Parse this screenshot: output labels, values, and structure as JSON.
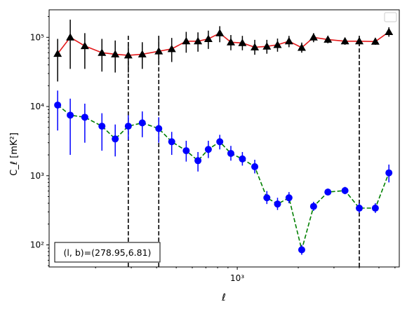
{
  "chart_data": {
    "type": "scatter",
    "xscale": "log",
    "yscale": "log",
    "xlim": [
      118,
      6300
    ],
    "ylim": [
      48,
      250000
    ],
    "xlabel": "ℓ",
    "ylabel": "C_ℓ [mK²]",
    "x_major_ticks": [
      {
        "value": 1000,
        "label": "10³"
      }
    ],
    "y_major_ticks": [
      {
        "value": 100,
        "label": "10²"
      },
      {
        "value": 1000,
        "label": "10³"
      },
      {
        "value": 10000,
        "label": "10⁴"
      },
      {
        "value": 100000,
        "label": "10⁵"
      }
    ],
    "legend": {
      "placement": "top-right",
      "entries": []
    },
    "annotation": "(l, b)=(278.95,6.81)",
    "vlines": [
      {
        "x": 290,
        "ymin": 48,
        "ymax": 110000,
        "style": "dashed",
        "color": "#000000"
      },
      {
        "x": 410,
        "ymin": 48,
        "ymax": 110000,
        "style": "dashed",
        "color": "#000000"
      },
      {
        "x": 4000,
        "ymin": 48,
        "ymax": 110000,
        "style": "dashed",
        "color": "#000000"
      }
    ],
    "series": [
      {
        "marker": "triangle",
        "marker_color": "#000000",
        "line_color": "#e41a1c",
        "line_style": "solid",
        "errorbar_color": "#000000",
        "points": [
          {
            "x": 130,
            "y": 58000,
            "lo": 23000,
            "hi": 95000
          },
          {
            "x": 150,
            "y": 100000,
            "lo": 35000,
            "hi": 180000
          },
          {
            "x": 177,
            "y": 75000,
            "lo": 35000,
            "hi": 115000
          },
          {
            "x": 215,
            "y": 60000,
            "lo": 32000,
            "hi": 95000
          },
          {
            "x": 250,
            "y": 57000,
            "lo": 31000,
            "hi": 90000
          },
          {
            "x": 290,
            "y": 55000,
            "lo": 31000,
            "hi": 85000
          },
          {
            "x": 340,
            "y": 57000,
            "lo": 35000,
            "hi": 85000
          },
          {
            "x": 410,
            "y": 63000,
            "lo": 40000,
            "hi": 95000
          },
          {
            "x": 475,
            "y": 68000,
            "lo": 44000,
            "hi": 98000
          },
          {
            "x": 560,
            "y": 88000,
            "lo": 60000,
            "hi": 120000
          },
          {
            "x": 640,
            "y": 88000,
            "lo": 62000,
            "hi": 118000
          },
          {
            "x": 720,
            "y": 95000,
            "lo": 68000,
            "hi": 125000
          },
          {
            "x": 820,
            "y": 115000,
            "lo": 85000,
            "hi": 145000
          },
          {
            "x": 930,
            "y": 85000,
            "lo": 65000,
            "hi": 108000
          },
          {
            "x": 1060,
            "y": 83000,
            "lo": 65000,
            "hi": 105000
          },
          {
            "x": 1220,
            "y": 72000,
            "lo": 56000,
            "hi": 92000
          },
          {
            "x": 1400,
            "y": 74000,
            "lo": 58000,
            "hi": 92000
          },
          {
            "x": 1580,
            "y": 78000,
            "lo": 62000,
            "hi": 96000
          },
          {
            "x": 1800,
            "y": 88000,
            "lo": 72000,
            "hi": 105000
          },
          {
            "x": 2080,
            "y": 71000,
            "lo": 60000,
            "hi": 84000
          },
          {
            "x": 2380,
            "y": 100000,
            "lo": 85000,
            "hi": 115000
          },
          {
            "x": 2800,
            "y": 93000,
            "lo": 82000,
            "hi": 105000
          },
          {
            "x": 3400,
            "y": 88000,
            "lo": 78000,
            "hi": 98000
          },
          {
            "x": 4000,
            "y": 88000,
            "lo": 79000,
            "hi": 97000
          },
          {
            "x": 4800,
            "y": 87000,
            "lo": 78000,
            "hi": 97000
          },
          {
            "x": 5600,
            "y": 120000,
            "lo": 102000,
            "hi": 140000
          }
        ]
      },
      {
        "marker": "circle",
        "marker_color": "#0000ff",
        "line_color": "#008000",
        "line_style": "dashed",
        "errorbar_color": "#0000ff",
        "points": [
          {
            "x": 130,
            "y": 10500,
            "lo": 4500,
            "hi": 17000
          },
          {
            "x": 150,
            "y": 7500,
            "lo": 2000,
            "hi": 13000
          },
          {
            "x": 177,
            "y": 7000,
            "lo": 3000,
            "hi": 11000
          },
          {
            "x": 215,
            "y": 5200,
            "lo": 2300,
            "hi": 8000
          },
          {
            "x": 250,
            "y": 3400,
            "lo": 1900,
            "hi": 5500
          },
          {
            "x": 290,
            "y": 5200,
            "lo": 3300,
            "hi": 7500
          },
          {
            "x": 340,
            "y": 5800,
            "lo": 3600,
            "hi": 8500
          },
          {
            "x": 410,
            "y": 4800,
            "lo": 3000,
            "hi": 7000
          },
          {
            "x": 475,
            "y": 3100,
            "lo": 2000,
            "hi": 4300
          },
          {
            "x": 560,
            "y": 2300,
            "lo": 1600,
            "hi": 3200
          },
          {
            "x": 640,
            "y": 1650,
            "lo": 1150,
            "hi": 2200
          },
          {
            "x": 720,
            "y": 2400,
            "lo": 1800,
            "hi": 3200
          },
          {
            "x": 820,
            "y": 3100,
            "lo": 2400,
            "hi": 3900
          },
          {
            "x": 930,
            "y": 2100,
            "lo": 1650,
            "hi": 2700
          },
          {
            "x": 1060,
            "y": 1750,
            "lo": 1400,
            "hi": 2200
          },
          {
            "x": 1220,
            "y": 1350,
            "lo": 1080,
            "hi": 1700
          },
          {
            "x": 1400,
            "y": 480,
            "lo": 390,
            "hi": 600
          },
          {
            "x": 1580,
            "y": 390,
            "lo": 320,
            "hi": 480
          },
          {
            "x": 1800,
            "y": 480,
            "lo": 400,
            "hi": 580
          },
          {
            "x": 2080,
            "y": 85,
            "lo": 72,
            "hi": 100
          },
          {
            "x": 2380,
            "y": 360,
            "lo": 310,
            "hi": 420
          },
          {
            "x": 2800,
            "y": 580,
            "lo": 520,
            "hi": 650
          },
          {
            "x": 3400,
            "y": 610,
            "lo": 540,
            "hi": 690
          },
          {
            "x": 4000,
            "y": 340,
            "lo": 290,
            "hi": 400
          },
          {
            "x": 4800,
            "y": 340,
            "lo": 290,
            "hi": 400
          },
          {
            "x": 5600,
            "y": 1100,
            "lo": 800,
            "hi": 1450
          }
        ]
      }
    ]
  }
}
